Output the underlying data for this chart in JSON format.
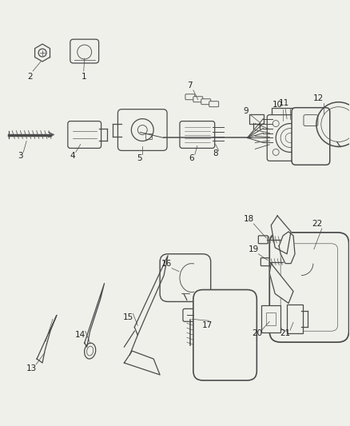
{
  "background_color": "#f0f0eb",
  "line_color": "#4a4a4a",
  "text_color": "#222222",
  "fig_width": 4.38,
  "fig_height": 5.33,
  "dpi": 100
}
